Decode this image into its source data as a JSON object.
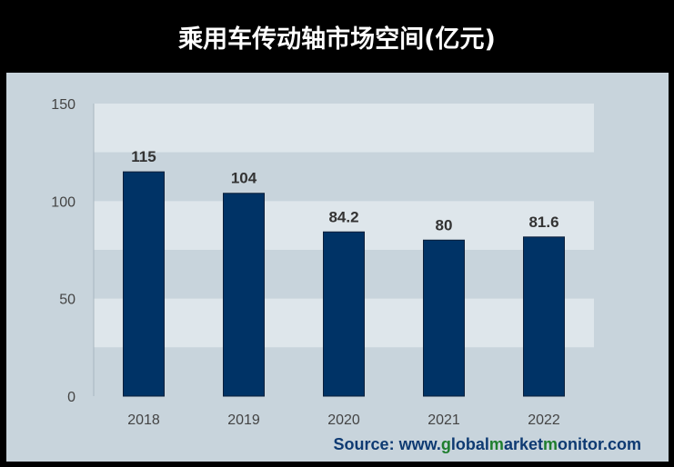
{
  "chart_data": {
    "type": "bar",
    "title": "乘用车传动轴市场空间(亿元)",
    "categories": [
      "2018",
      "2019",
      "2020",
      "2021",
      "2022"
    ],
    "values": [
      115,
      104,
      84.2,
      80,
      81.6
    ],
    "data_labels": [
      "115",
      "104",
      "84.2",
      "80",
      "81.6"
    ],
    "y_ticks": [
      "0",
      "50",
      "100",
      "150"
    ],
    "ylim": [
      0,
      150
    ],
    "bar_color": "#003366",
    "grid_band_light": "#dee6eb",
    "grid_band_dark": "#c8d4dc",
    "legend": "none"
  },
  "source": {
    "prefix": "Source: www.",
    "p1": "g",
    "p2": "lobal",
    "p3": "m",
    "p4": "arket",
    "p5": "m",
    "p6": "onitor.com"
  }
}
